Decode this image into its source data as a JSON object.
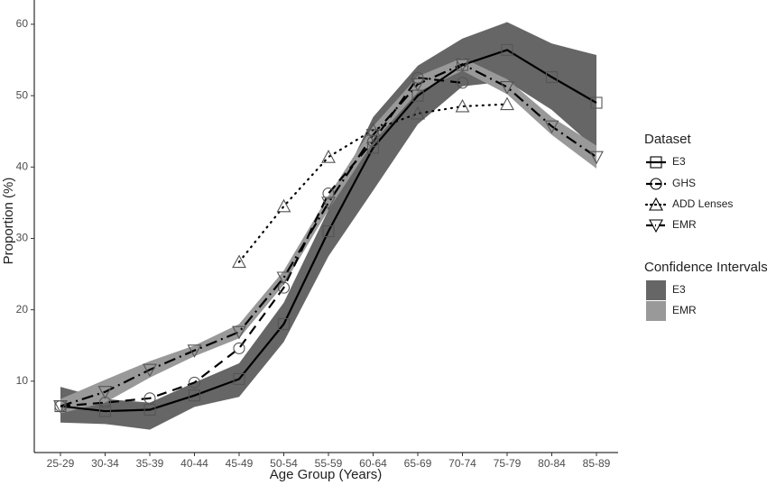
{
  "chart_data": {
    "type": "line",
    "x_label": "Age Group (Years)",
    "y_label": "Proportion (%)",
    "categories": [
      "25-29",
      "30-34",
      "35-39",
      "40-44",
      "45-49",
      "50-54",
      "55-59",
      "60-64",
      "65-69",
      "70-74",
      "75-79",
      "80-84",
      "85-89"
    ],
    "ylim": [
      0,
      63.4
    ],
    "yticks": [
      10,
      20,
      30,
      40,
      50,
      60
    ],
    "legend_title": "Dataset",
    "bands_legend_title": "Confidence Intervals",
    "series": [
      {
        "name": "E3",
        "color": "#000000",
        "dash": "solid",
        "marker": "square",
        "values": [
          6.5,
          5.8,
          6.0,
          8.0,
          10.3,
          18.0,
          31.0,
          42.7,
          50.0,
          54.3,
          56.4,
          52.6,
          49.0
        ]
      },
      {
        "name": "GHS",
        "color": "#000000",
        "dash": "dashed",
        "marker": "circle",
        "values": [
          6.5,
          7.0,
          7.6,
          9.8,
          14.6,
          23.1,
          36.3,
          43.6,
          52.5,
          51.8,
          null,
          null,
          null
        ]
      },
      {
        "name": "ADD Lenses",
        "color": "#000000",
        "dash": "dotted",
        "marker": "triangle",
        "values": [
          null,
          null,
          null,
          null,
          26.7,
          34.5,
          41.4,
          45.2,
          47.5,
          48.5,
          48.8,
          null,
          null
        ]
      },
      {
        "name": "EMR",
        "color": "#000000",
        "dash": "dotdash",
        "marker": "triangle-down",
        "values": [
          6.5,
          8.5,
          11.6,
          14.3,
          16.9,
          24.5,
          35.0,
          44.5,
          51.6,
          54.4,
          51.2,
          45.7,
          41.4
        ]
      }
    ],
    "bands": [
      {
        "name": "E3",
        "color": "#666666",
        "lower": [
          4.2,
          4.0,
          3.2,
          6.4,
          7.8,
          15.5,
          27.5,
          36.7,
          46.0,
          51.3,
          52.0,
          48.0,
          42.5
        ],
        "upper": [
          9.2,
          7.5,
          7.0,
          9.8,
          12.5,
          21.0,
          34.0,
          47.0,
          54.2,
          58.0,
          60.3,
          57.3,
          55.7
        ]
      },
      {
        "name": "EMR",
        "color": "#999999",
        "lower": [
          5.5,
          7.0,
          10.5,
          13.5,
          16.0,
          23.5,
          34.0,
          43.5,
          50.5,
          53.5,
          50.2,
          44.5,
          39.8
        ],
        "upper": [
          7.5,
          10.2,
          12.8,
          15.0,
          18.0,
          25.5,
          36.0,
          45.7,
          52.7,
          55.3,
          52.3,
          47.0,
          43.0
        ]
      }
    ]
  }
}
